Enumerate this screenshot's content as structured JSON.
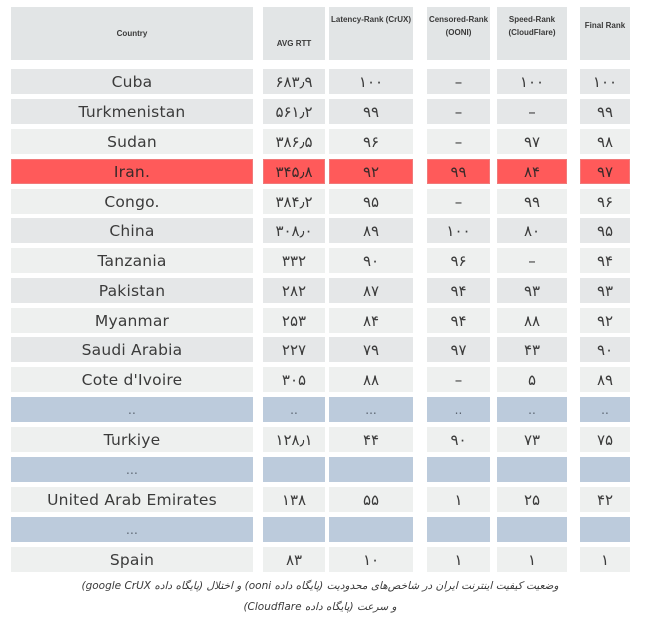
{
  "table": {
    "headers": [
      {
        "key": "country",
        "label": "Country"
      },
      {
        "key": "avg_rtt",
        "label": "AVG RTT"
      },
      {
        "key": "latency_rank",
        "label": "Latency-Rank (CrUX)"
      },
      {
        "key": "censored_rank",
        "label": "Censored-Rank (OONI)"
      },
      {
        "key": "speed_rank",
        "label": "Speed-Rank (CloudFlare)"
      },
      {
        "key": "final_rank",
        "label": "Final Rank"
      }
    ],
    "rows": [
      {
        "type": "dark",
        "cells": [
          "Cuba",
          "۶۸۳٫۹",
          "۱۰۰",
          "–",
          "۱۰۰",
          "۱۰۰"
        ]
      },
      {
        "type": "dark",
        "cells": [
          "Turkmenistan",
          "۵۶۱٫۲",
          "۹۹",
          "–",
          "–",
          "۹۹"
        ]
      },
      {
        "type": "light",
        "cells": [
          "Sudan",
          "۳۸۶٫۵",
          "۹۶",
          "–",
          "۹۷",
          "۹۸"
        ]
      },
      {
        "type": "hl",
        "cells": [
          "Iran.",
          "۳۴۵٫۸",
          "۹۲",
          "۹۹",
          "۸۴",
          "۹۷"
        ]
      },
      {
        "type": "light",
        "cells": [
          "Congo.",
          "۳۸۴٫۲",
          "۹۵",
          "–",
          "۹۹",
          "۹۶"
        ]
      },
      {
        "type": "dark",
        "cells": [
          "China",
          "۳۰۸٫۰",
          "۸۹",
          "۱۰۰",
          "۸۰",
          "۹۵"
        ]
      },
      {
        "type": "light",
        "cells": [
          "Tanzania",
          "۳۳۲",
          "۹۰",
          "۹۶",
          "–",
          "۹۴"
        ]
      },
      {
        "type": "dark",
        "cells": [
          "Pakistan",
          "۲۸۲",
          "۸۷",
          "۹۴",
          "۹۳",
          "۹۳"
        ]
      },
      {
        "type": "light",
        "cells": [
          "Myanmar",
          "۲۵۳",
          "۸۴",
          "۹۴",
          "۸۸",
          "۹۲"
        ]
      },
      {
        "type": "dark",
        "cells": [
          "Saudi Arabia",
          "۲۲۷",
          "۷۹",
          "۹۷",
          "۴۳",
          "۹۰"
        ]
      },
      {
        "type": "light",
        "cells": [
          "Cote d'Ivoire",
          "۳۰۵",
          "۸۸",
          "–",
          "۵",
          "۸۹"
        ]
      },
      {
        "type": "sep",
        "cells": [
          "..",
          "..",
          "...",
          "..",
          "..",
          ".."
        ]
      },
      {
        "type": "light",
        "cells": [
          "Turkiye",
          "۱۲۸٫۱",
          "۴۴",
          "۹۰",
          "۷۳",
          "۷۵"
        ]
      },
      {
        "type": "sep",
        "cells": [
          "...",
          "",
          "",
          "",
          "",
          ""
        ]
      },
      {
        "type": "light",
        "cells": [
          "United Arab Emirates",
          "۱۳۸",
          "۵۵",
          "۱",
          "۲۵",
          "۴۲"
        ]
      },
      {
        "type": "sep",
        "cells": [
          "...",
          "",
          "",
          "",
          "",
          ""
        ]
      },
      {
        "type": "light",
        "cells": [
          "Spain",
          "۸۳",
          "۱۰",
          "۱",
          "۱",
          "۱"
        ]
      }
    ],
    "highlight_color": "#ff5a5a",
    "separator_color": "#bccbdc"
  },
  "caption": {
    "line1": "وضعیت کیفیت اینترنت ایران در شاخص‌های محدودیت (پایگاه داده ooni) و اختلال (پایگاه داده google CrUX)",
    "line2": "و سرعت (پایگاه داده Cloudflare)"
  }
}
